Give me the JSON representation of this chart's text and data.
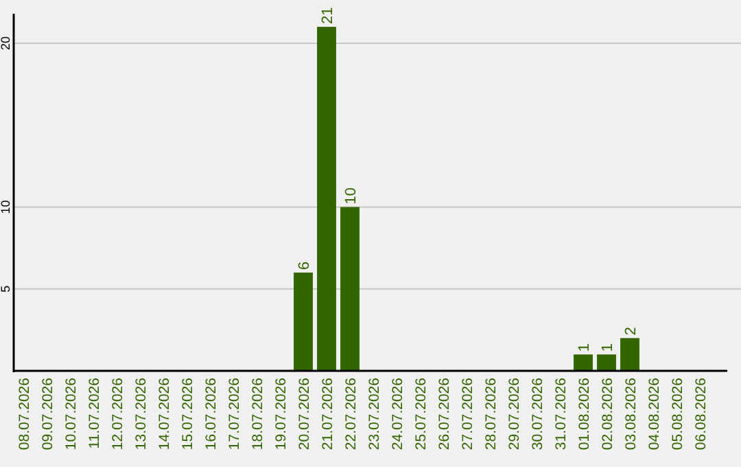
{
  "chart_data": {
    "type": "bar",
    "categories": [
      "08.07.2026",
      "09.07.2026",
      "10.07.2026",
      "11.07.2026",
      "12.07.2026",
      "13.07.2026",
      "14.07.2026",
      "15.07.2026",
      "16.07.2026",
      "17.07.2026",
      "18.07.2026",
      "19.07.2026",
      "20.07.2026",
      "21.07.2026",
      "22.07.2026",
      "23.07.2026",
      "24.07.2026",
      "25.07.2026",
      "26.07.2026",
      "27.07.2026",
      "28.07.2026",
      "29.07.2026",
      "30.07.2026",
      "31.07.2026",
      "01.08.2026",
      "02.08.2026",
      "03.08.2026",
      "04.08.2026",
      "05.08.2026",
      "06.08.2026"
    ],
    "values": [
      0,
      0,
      0,
      0,
      0,
      0,
      0,
      0,
      0,
      0,
      0,
      0,
      6,
      21,
      10,
      0,
      0,
      0,
      0,
      0,
      0,
      0,
      0,
      0,
      1,
      1,
      2,
      0,
      0,
      0
    ],
    "value_labels": [
      null,
      null,
      null,
      null,
      null,
      null,
      null,
      null,
      null,
      null,
      null,
      null,
      "6",
      "21",
      "10",
      null,
      null,
      null,
      null,
      null,
      null,
      null,
      null,
      null,
      "1",
      "1",
      "2",
      null,
      null,
      null
    ],
    "color": "#336600",
    "ylim": [
      0,
      21.8
    ],
    "yticks": [
      5,
      10,
      20
    ],
    "grid": "y"
  }
}
